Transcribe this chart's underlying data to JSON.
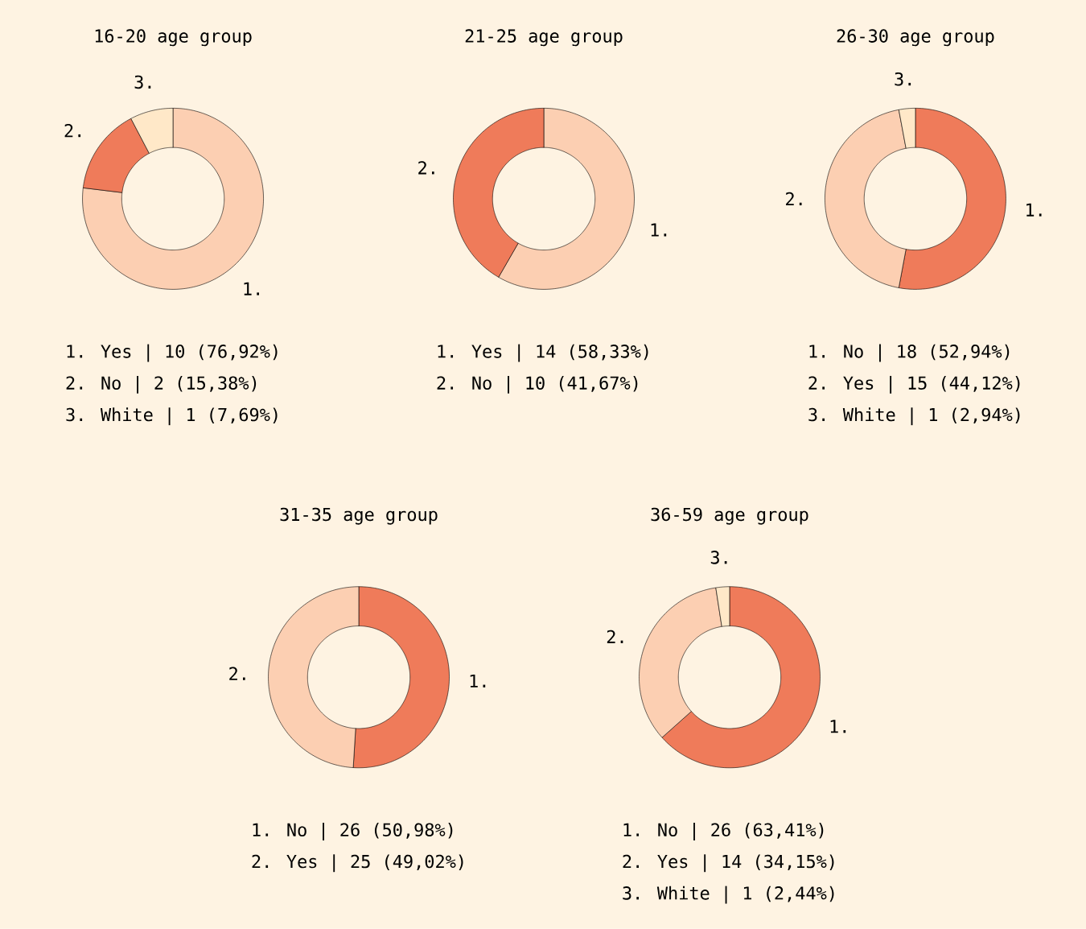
{
  "chart_data": [
    {
      "type": "donut",
      "title": "16-20 age group",
      "categories": [
        "1.",
        "2.",
        "3."
      ],
      "values": [
        10,
        2,
        1
      ],
      "colors": [
        "#fccfb2",
        "#ef7b5a",
        "#ffe8c8"
      ],
      "annotations": [
        "1. Yes | 10 (76,92%)",
        "2. No | 2 (15,38%)",
        "3. White | 1 (7,69%)"
      ]
    },
    {
      "type": "donut",
      "title": "21-25 age group",
      "categories": [
        "1.",
        "2."
      ],
      "values": [
        58.33,
        41.67
      ],
      "colors": [
        "#fccfb2",
        "#ef7b5a"
      ],
      "annotations": [
        "1. Yes | 14 (58,33%)",
        "2. No | 10 (41,67%)"
      ]
    },
    {
      "type": "donut",
      "title": "26-30 age group",
      "categories": [
        "1.",
        "2.",
        "3."
      ],
      "values": [
        52.94,
        44.12,
        2.94
      ],
      "colors": [
        "#ef7b5a",
        "#fccfb2",
        "#ffe8c8"
      ],
      "annotations": [
        "1. No | 18 (52,94%)",
        "2. Yes | 15 (44,12%)",
        "3. White | 1 (2,94%)"
      ]
    },
    {
      "type": "donut",
      "title": "31-35 age group",
      "categories": [
        "1.",
        "2."
      ],
      "values": [
        50.98,
        49.02
      ],
      "colors": [
        "#ef7b5a",
        "#fccfb2"
      ],
      "annotations": [
        "1. No | 26 (50,98%)",
        "2. Yes | 25 (49,02%)"
      ]
    },
    {
      "type": "donut",
      "title": "36-59 age group",
      "categories": [
        "1.",
        "2.",
        "3."
      ],
      "values": [
        63.41,
        34.15,
        2.44
      ],
      "colors": [
        "#ef7b5a",
        "#fccfb2",
        "#ffe8c8"
      ],
      "annotations": [
        "1. No | 26 (63,41%)",
        "2. Yes | 14 (34,15%)",
        "3. White | 1 (2,44%)"
      ]
    }
  ]
}
